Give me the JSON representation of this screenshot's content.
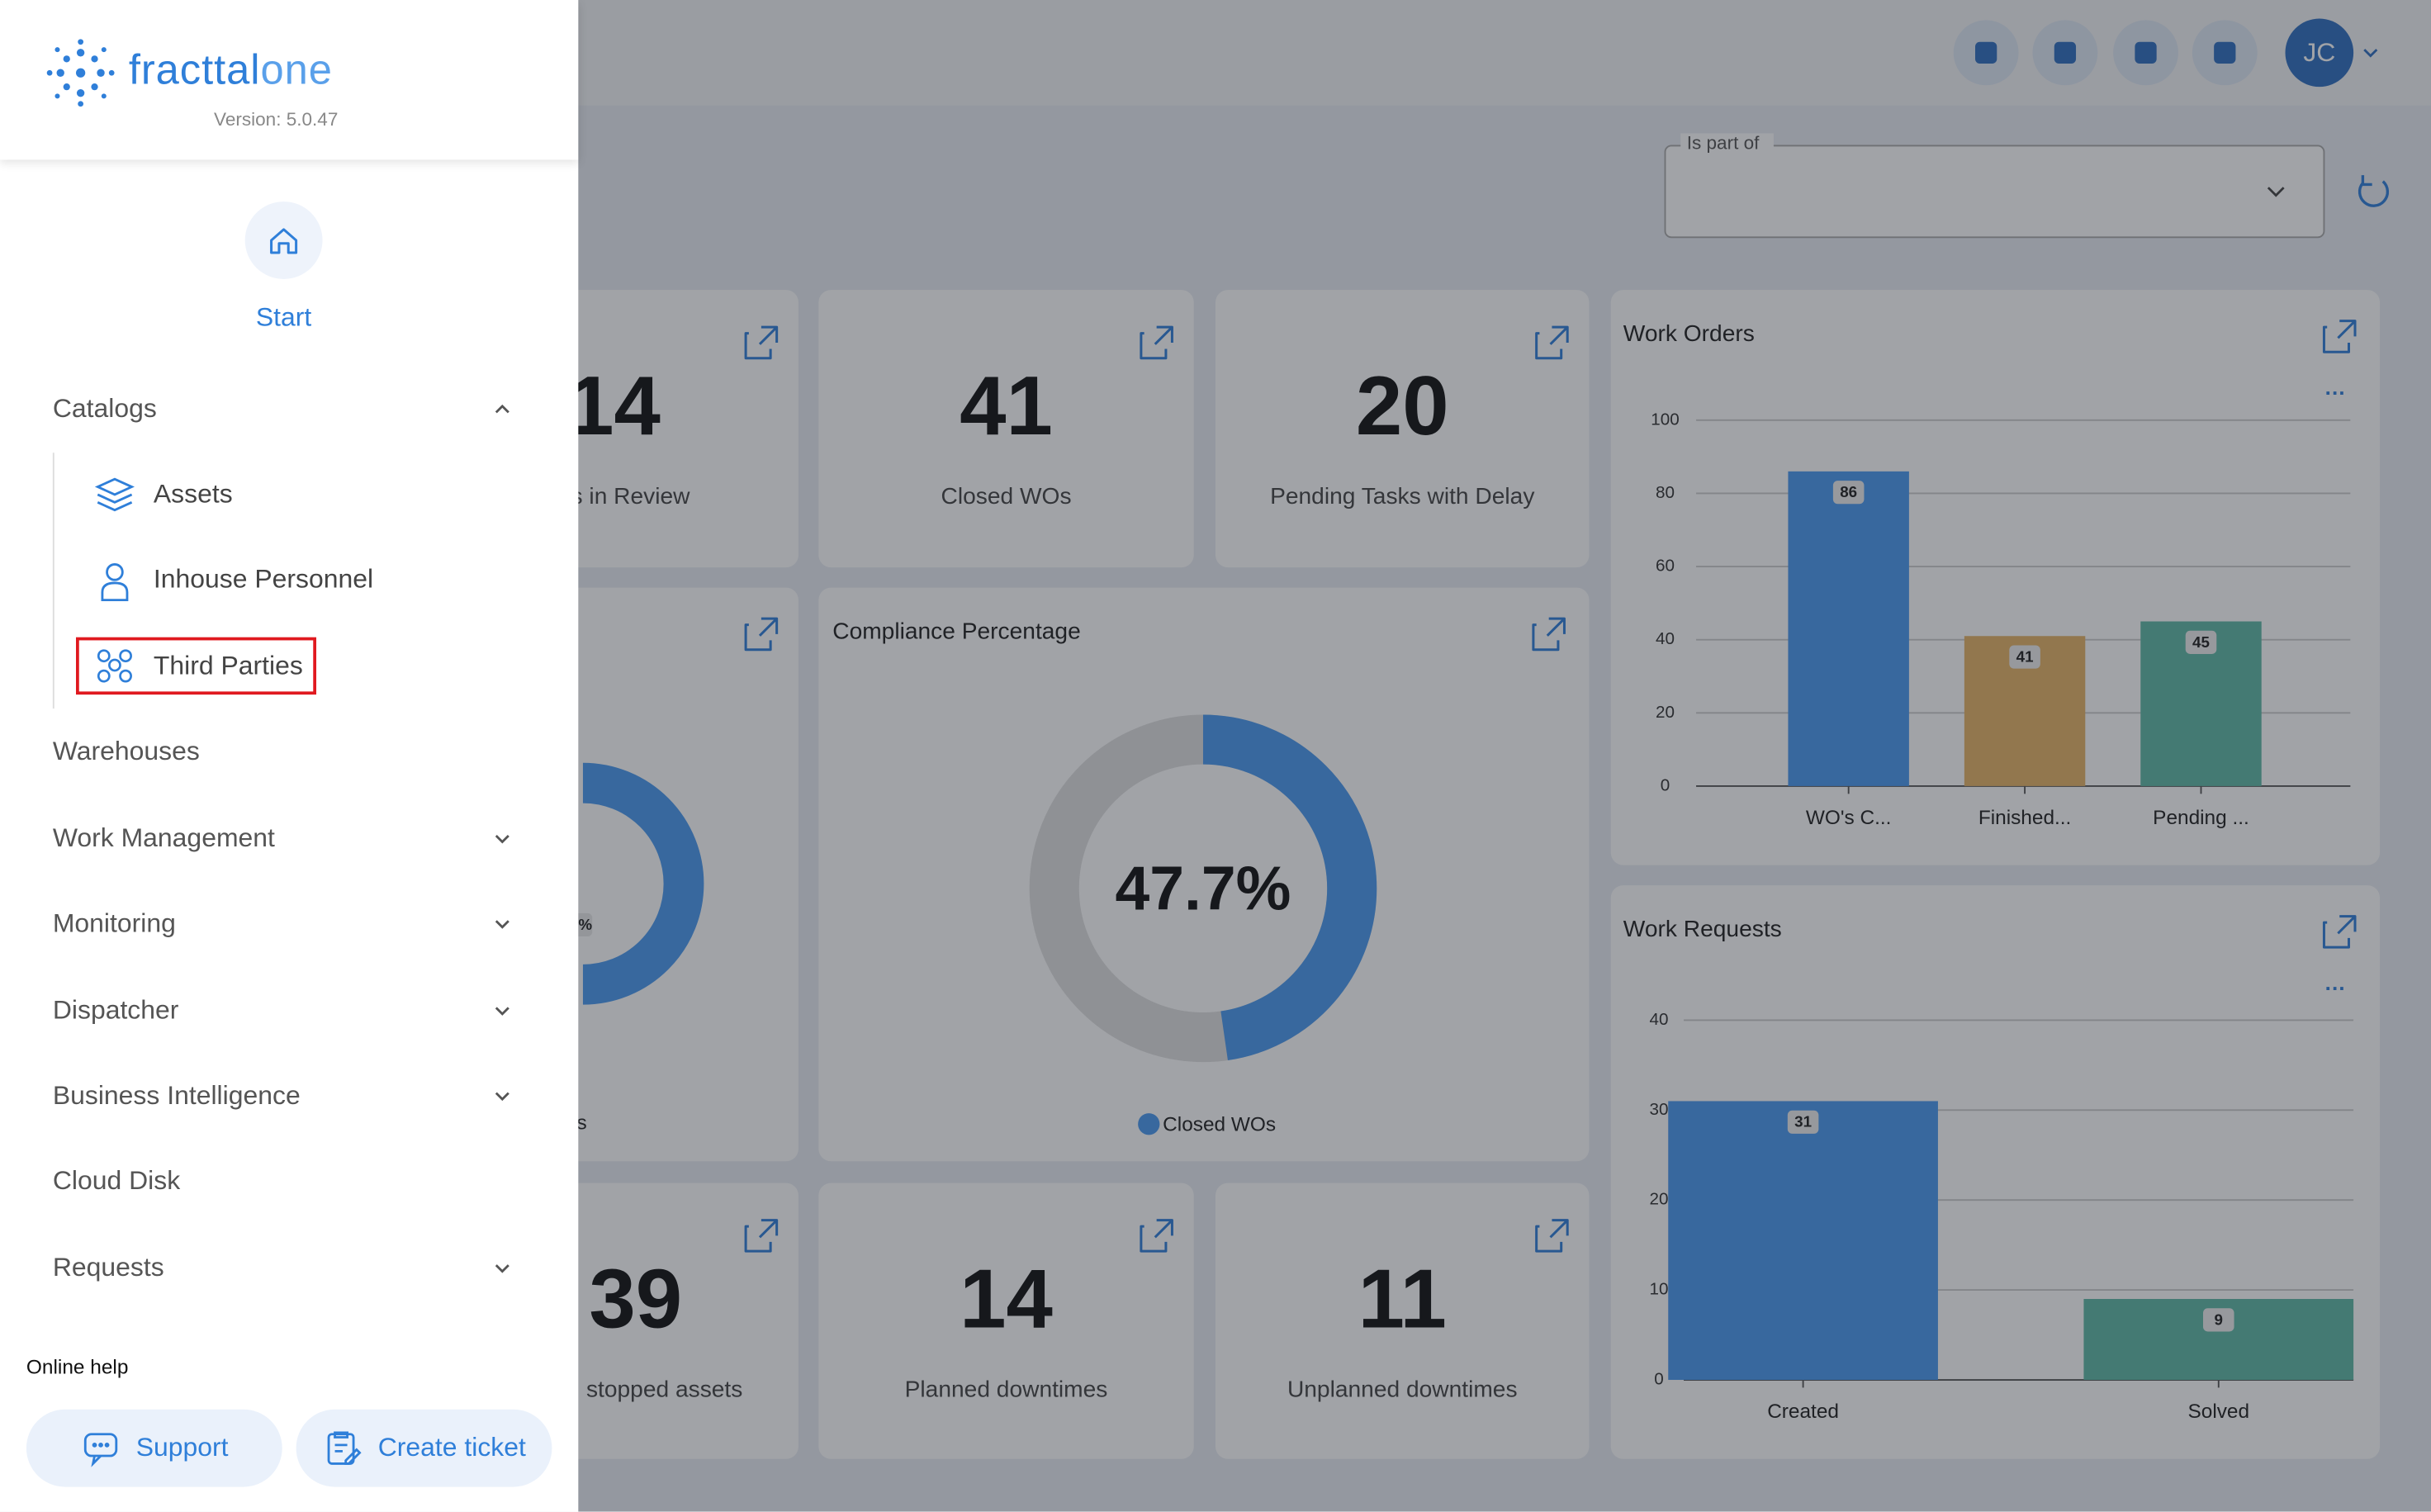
{
  "sidebar": {
    "logo": {
      "name": "fracttal",
      "suffix": "one"
    },
    "version": "Version: 5.0.47",
    "start": "Start",
    "catalogs": {
      "title": "Catalogs",
      "items": [
        "Assets",
        "Inhouse Personnel",
        "Third Parties"
      ]
    },
    "menu": [
      "Warehouses",
      "Work Management",
      "Monitoring",
      "Dispatcher",
      "Business Intelligence",
      "Cloud Disk",
      "Requests"
    ],
    "online_help": "Online help",
    "support": "Support",
    "create_ticket": "Create ticket"
  },
  "topbar": {
    "avatar": "JC"
  },
  "filter": {
    "label": "Is part of"
  },
  "kpis": [
    {
      "value": 14,
      "label": "s in Review"
    },
    {
      "value": 41,
      "label": "Closed WOs"
    },
    {
      "value": 20,
      "label": "Pending Tasks with Delay"
    },
    {
      "value": 39,
      "label": "stopped assets"
    },
    {
      "value": 14,
      "label": "Planned downtimes"
    },
    {
      "value": 11,
      "label": "Unplanned downtimes"
    }
  ],
  "partial_card": {
    "fragment": "%",
    "legend_fragment": "s"
  },
  "charts": [
    {
      "type": "donut",
      "title": "Compliance Percentage",
      "values": [
        47.7
      ],
      "value_labels": [
        "47.7%"
      ],
      "legend": "Closed WOs",
      "color": "#4a9af0",
      "ylim": [
        0,
        100
      ]
    },
    {
      "type": "bar",
      "title": "Work Orders",
      "categories": [
        "WO's C...",
        "Finished...",
        "Pending ..."
      ],
      "values": [
        86,
        41,
        45
      ],
      "colors": [
        "#4a9af0",
        "#e5b466",
        "#5fb8a6"
      ],
      "ylim": [
        0,
        100
      ],
      "yticks": [
        0,
        20,
        40,
        60,
        80,
        100
      ],
      "grid": true
    },
    {
      "type": "bar",
      "title": "Work Requests",
      "categories": [
        "Created",
        "Solved"
      ],
      "values": [
        31,
        9
      ],
      "colors": [
        "#4a9af0",
        "#5fb8a6"
      ],
      "ylim": [
        0,
        40
      ],
      "yticks": [
        0,
        10,
        20,
        30,
        40
      ],
      "grid": true
    }
  ]
}
